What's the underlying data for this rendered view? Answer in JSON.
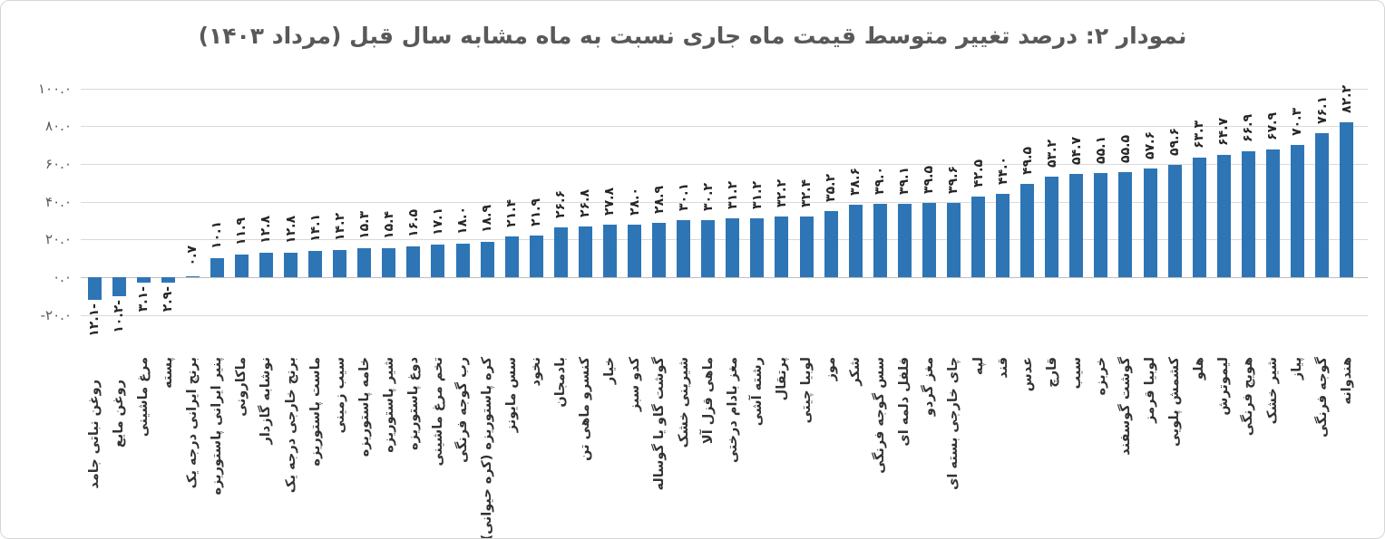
{
  "chart_data": {
    "type": "bar",
    "title": "نمودار ۲: درصد تغییر متوسط قیمت ماه جاری نسبت به ماه مشابه سال قبل (مرداد ۱۴۰۳)",
    "xlabel": "",
    "ylabel": "",
    "ylim": [
      -20,
      100
    ],
    "grid": true,
    "legend": "none",
    "bar_color": "#2e75b6",
    "title_color": "#595959",
    "axis_label_color": "#595959",
    "data_label_color": "#262626",
    "gridline_color": "#d9d9d9",
    "axis_line_color": "#bfbfbf",
    "y_ticks": [
      {
        "label": "۱۰۰.۰",
        "value": 100
      },
      {
        "label": "۸۰.۰",
        "value": 80
      },
      {
        "label": "۶۰.۰",
        "value": 60
      },
      {
        "label": "۴۰.۰",
        "value": 40
      },
      {
        "label": "۲۰.۰",
        "value": 20
      },
      {
        "label": "۰.۰",
        "value": 0
      },
      {
        "label": "-۲۰.۰",
        "value": -20
      }
    ],
    "bars": [
      {
        "category": "روغن نباتی جامد",
        "value": -12.1,
        "label": "-۱۲.۱"
      },
      {
        "category": "روغن مایع",
        "value": -10.2,
        "label": "-۱۰.۲"
      },
      {
        "category": "مرغ ماشینی",
        "value": -3.1,
        "label": "-۳.۱"
      },
      {
        "category": "پسته",
        "value": -2.9,
        "label": "-۲.۹"
      },
      {
        "category": "برنج ایرانی درجه یک",
        "value": 0.7,
        "label": "۰.۷"
      },
      {
        "category": "پنیر ایرانی پاستوریزه",
        "value": 10.1,
        "label": "۱۰.۱"
      },
      {
        "category": "ماکارونی",
        "value": 11.9,
        "label": "۱۱.۹"
      },
      {
        "category": "نوشابه گازدار",
        "value": 12.8,
        "label": "۱۲.۸"
      },
      {
        "category": "برنج خارجی درجه یک",
        "value": 12.8,
        "label": "۱۲.۸"
      },
      {
        "category": "ماست پاستوریزه",
        "value": 14.1,
        "label": "۱۴.۱"
      },
      {
        "category": "سیب زمینی",
        "value": 14.2,
        "label": "۱۴.۲"
      },
      {
        "category": "خامه پاستوریزه",
        "value": 15.3,
        "label": "۱۵.۳"
      },
      {
        "category": "شیر پاستوریزه",
        "value": 15.4,
        "label": "۱۵.۴"
      },
      {
        "category": "دوغ پاستوریزه",
        "value": 16.5,
        "label": "۱۶.۵"
      },
      {
        "category": "تخم مرغ ماشینی",
        "value": 17.1,
        "label": "۱۷.۱"
      },
      {
        "category": "رب گوجه فرنگی",
        "value": 18.0,
        "label": "۱۸.۰"
      },
      {
        "category": "کره پاستوریزه (کره حیوانی)",
        "value": 18.9,
        "label": "۱۸.۹"
      },
      {
        "category": "سس مایونز",
        "value": 21.4,
        "label": "۲۱.۴"
      },
      {
        "category": "نخود",
        "value": 21.9,
        "label": "۲۱.۹"
      },
      {
        "category": "بادمجان",
        "value": 26.6,
        "label": "۲۶.۶"
      },
      {
        "category": "کنسرو ماهی تن",
        "value": 26.8,
        "label": "۲۶.۸"
      },
      {
        "category": "خیار",
        "value": 27.8,
        "label": "۲۷.۸"
      },
      {
        "category": "کدو سبز",
        "value": 28.0,
        "label": "۲۸.۰"
      },
      {
        "category": "گوشت گاو یا گوساله",
        "value": 28.9,
        "label": "۲۸.۹"
      },
      {
        "category": "شیرینی خشک",
        "value": 30.1,
        "label": "۳۰.۱"
      },
      {
        "category": "ماهی قزل آلا",
        "value": 30.2,
        "label": "۳۰.۲"
      },
      {
        "category": "مغز بادام درختی",
        "value": 31.2,
        "label": "۳۱.۲"
      },
      {
        "category": "رشته آشی",
        "value": 31.2,
        "label": "۳۱.۲"
      },
      {
        "category": "پرتقال",
        "value": 32.2,
        "label": "۳۲.۲"
      },
      {
        "category": "لوبیا چیتی",
        "value": 32.4,
        "label": "۳۲.۴"
      },
      {
        "category": "موز",
        "value": 35.2,
        "label": "۳۵.۲"
      },
      {
        "category": "شکر",
        "value": 38.6,
        "label": "۳۸.۶"
      },
      {
        "category": "سس گوجه فرنگی",
        "value": 39.0,
        "label": "۳۹.۰"
      },
      {
        "category": "فلفل دلمه ای",
        "value": 39.1,
        "label": "۳۹.۱"
      },
      {
        "category": "مغز گردو",
        "value": 39.5,
        "label": "۳۹.۵"
      },
      {
        "category": "چای خارجی بسته ای",
        "value": 39.6,
        "label": "۳۹.۶"
      },
      {
        "category": "لپه",
        "value": 42.5,
        "label": "۴۲.۵"
      },
      {
        "category": "قند",
        "value": 44.0,
        "label": "۴۴.۰"
      },
      {
        "category": "عدس",
        "value": 49.5,
        "label": "۴۹.۵"
      },
      {
        "category": "قارچ",
        "value": 53.2,
        "label": "۵۳.۲"
      },
      {
        "category": "سیب",
        "value": 54.7,
        "label": "۵۴.۷"
      },
      {
        "category": "خربزه",
        "value": 55.1,
        "label": "۵۵.۱"
      },
      {
        "category": "گوشت گوسفند",
        "value": 55.5,
        "label": "۵۵.۵"
      },
      {
        "category": "لوبیا قرمز",
        "value": 57.6,
        "label": "۵۷.۶"
      },
      {
        "category": "کشمش پلویی",
        "value": 59.6,
        "label": "۵۹.۶"
      },
      {
        "category": "هلو",
        "value": 63.3,
        "label": "۶۳.۳"
      },
      {
        "category": "لیموترش",
        "value": 64.7,
        "label": "۶۴.۷"
      },
      {
        "category": "هویج فرنگی",
        "value": 66.9,
        "label": "۶۶.۹"
      },
      {
        "category": "شیر خشک",
        "value": 67.9,
        "label": "۶۷.۹"
      },
      {
        "category": "پیاز",
        "value": 70.3,
        "label": "۷۰.۳"
      },
      {
        "category": "گوجه فرنگی",
        "value": 76.1,
        "label": "۷۶.۱"
      },
      {
        "category": "هندوانه",
        "value": 82.2,
        "label": "۸۲.۲"
      }
    ]
  }
}
